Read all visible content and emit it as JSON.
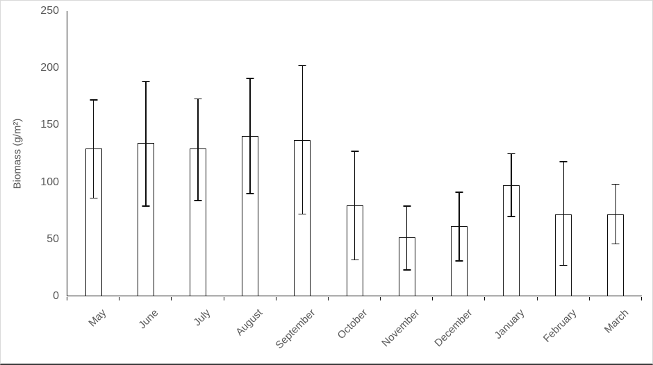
{
  "chart_data": {
    "type": "bar",
    "title": "",
    "xlabel": "",
    "ylabel": "Biomass (g/m²)",
    "ylim": [
      0,
      250
    ],
    "yticks": [
      0,
      50,
      100,
      150,
      200,
      250
    ],
    "grid": false,
    "legend": null,
    "categories": [
      "May",
      "June",
      "July",
      "August",
      "September",
      "October",
      "November",
      "December",
      "January",
      "February",
      "March"
    ],
    "series": [
      {
        "name": "Biomass",
        "values": [
          129,
          134,
          129,
          140,
          136,
          79,
          51,
          61,
          97,
          71,
          71
        ],
        "error_high": [
          172,
          188,
          173,
          191,
          202,
          127,
          79,
          91,
          125,
          118,
          98
        ],
        "error_low": [
          85,
          78,
          83,
          89,
          71,
          31,
          22,
          30,
          69,
          26,
          45
        ]
      }
    ],
    "colors": {
      "bar_fill": "#ffffff",
      "bar_border": "#0d0d0d",
      "axis_line": "#0d0d0d",
      "label_text": "#595959",
      "frame_border": "#d9d9d9",
      "background": "#ffffff"
    }
  }
}
